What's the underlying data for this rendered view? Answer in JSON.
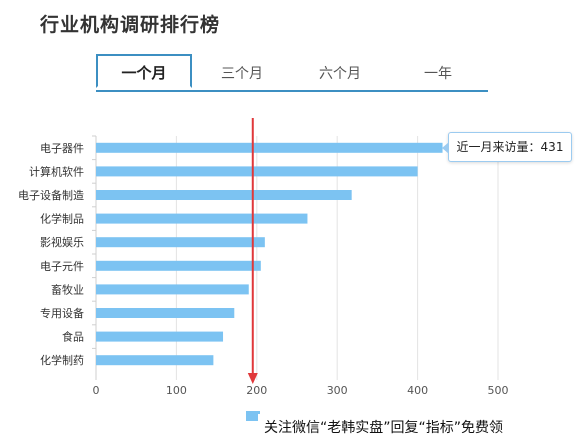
{
  "title": "行业机构调研排行榜",
  "tabs": [
    {
      "label": "一个月",
      "active": true
    },
    {
      "label": "三个月",
      "active": false
    },
    {
      "label": "六个月",
      "active": false
    },
    {
      "label": "一年",
      "active": false
    }
  ],
  "tooltip": {
    "label": "近一月来访量：431"
  },
  "watermark": "关注微信“老韩实盘”回复“指标”免费领",
  "colors": {
    "bar": "#7cc3f2",
    "accent": "#3c8fc2",
    "marker": "#e0383a"
  },
  "chart_data": {
    "type": "bar",
    "orientation": "horizontal",
    "categories": [
      "电子器件",
      "计算机软件",
      "电子设备制造",
      "化学制品",
      "影视娱乐",
      "电子元件",
      "畜牧业",
      "专用设备",
      "食品",
      "化学制药"
    ],
    "values": [
      431,
      400,
      318,
      263,
      210,
      205,
      190,
      172,
      158,
      146
    ],
    "xlim": [
      0,
      500
    ],
    "xticks": [
      0,
      100,
      200,
      300,
      400,
      500
    ],
    "marker_value": 195,
    "grid": true
  }
}
